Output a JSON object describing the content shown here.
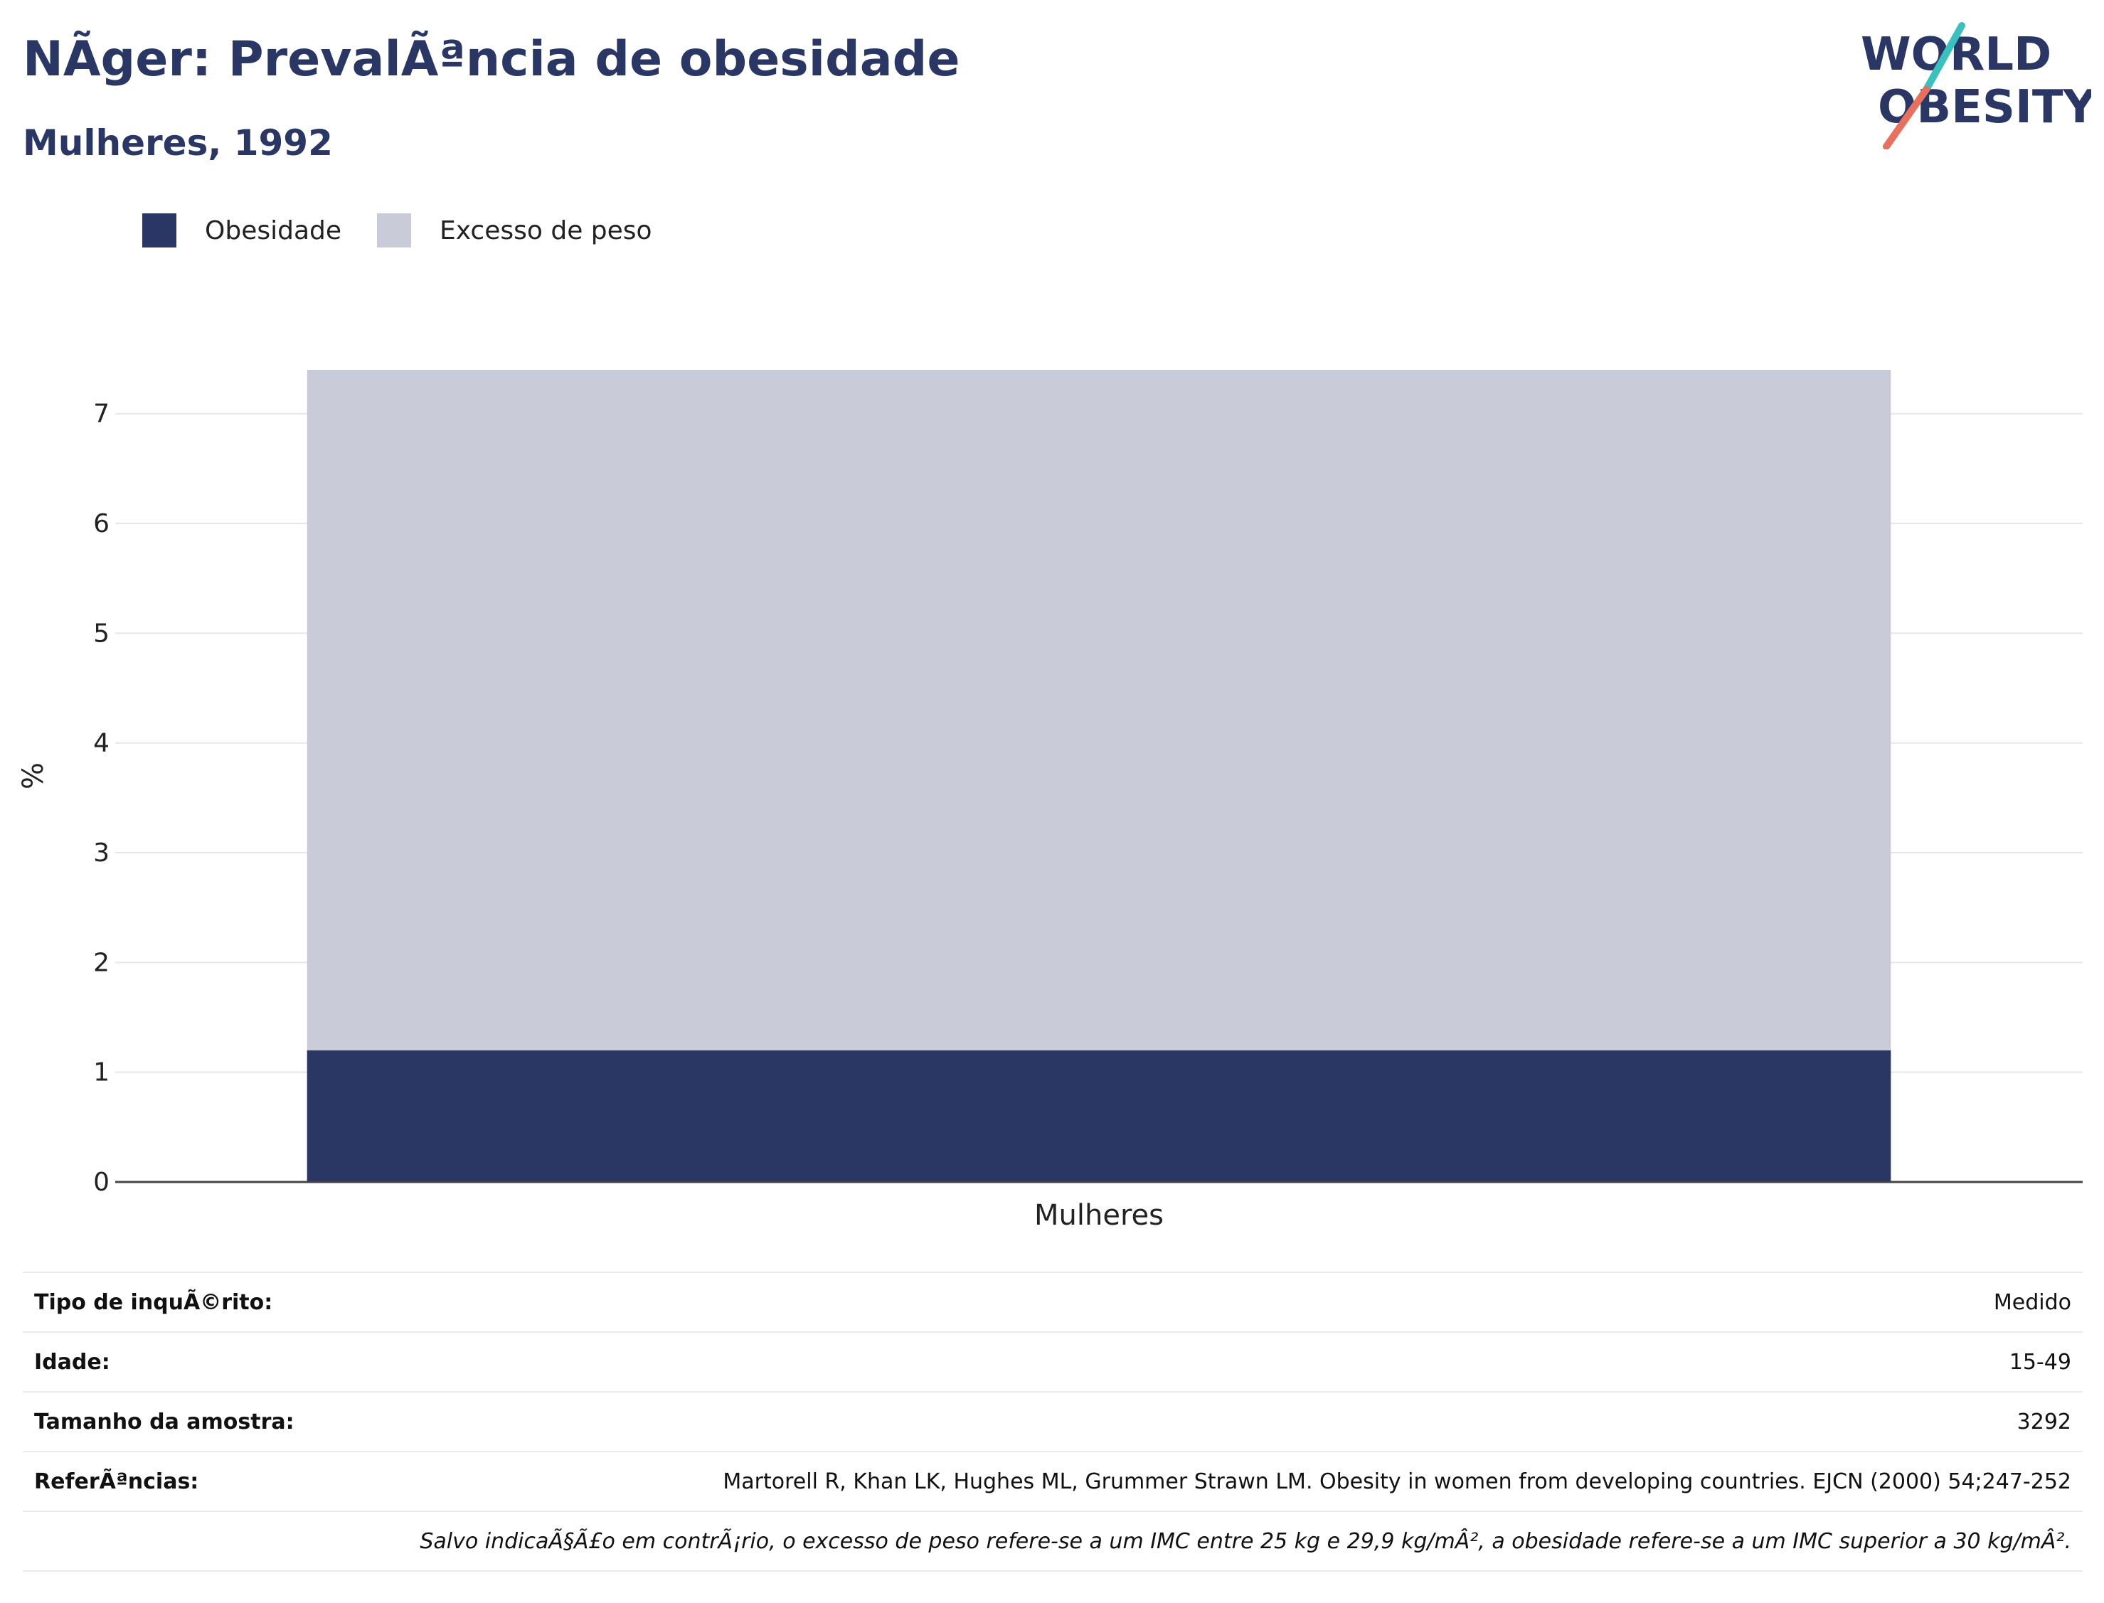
{
  "header": {
    "title": "NÃger: PrevalÃªncia de obesidade",
    "subtitle": "Mulheres, 1992"
  },
  "logo": {
    "line1": "WORLD",
    "line2": "OBESITY",
    "colors": {
      "text": "#2a3663",
      "slash_top": "#3bbfbf",
      "slash_bottom": "#e8705f"
    }
  },
  "legend": [
    {
      "label": "Obesidade",
      "color": "#2a3663"
    },
    {
      "label": "Excesso de peso",
      "color": "#c9ccd8"
    }
  ],
  "chart_data": {
    "type": "bar",
    "stacked": true,
    "categories": [
      "Mulheres"
    ],
    "series": [
      {
        "name": "Obesidade",
        "values": [
          1.2
        ],
        "color": "#2a3663"
      },
      {
        "name": "Excesso de peso",
        "values": [
          6.2
        ],
        "color": "#c9ccd8"
      }
    ],
    "ylabel": "%",
    "ylim": [
      0,
      7.4
    ],
    "yticks": [
      0,
      1,
      2,
      3,
      4,
      5,
      6,
      7
    ],
    "grid": true
  },
  "info": [
    {
      "key": "Tipo de inquÃ©rito:",
      "value": "Medido"
    },
    {
      "key": "Idade:",
      "value": "15-49"
    },
    {
      "key": "Tamanho da amostra:",
      "value": "3292"
    },
    {
      "key": "ReferÃªncias:",
      "value": "Martorell R, Khan LK, Hughes ML, Grummer Strawn LM. Obesity in women from developing countries. EJCN (2000) 54;247-252"
    }
  ],
  "note": "Salvo indicaÃ§Ã£o em contrÃ¡rio, o excesso de peso refere-se a um IMC entre 25 kg e 29,9 kg/mÂ², a obesidade refere-se a um IMC superior a 30 kg/mÂ²."
}
